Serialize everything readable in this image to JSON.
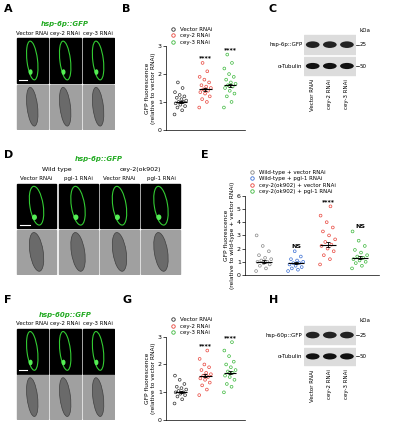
{
  "chart_data": [
    {
      "type": "strip",
      "panel": "B",
      "y_label": "GFP fluorescence\n(relative to vector RNAi)",
      "ylim": [
        0,
        3
      ],
      "yticks": [
        0,
        1,
        2,
        3
      ],
      "legend": "upper left",
      "tick_labels": "y",
      "marker": "o",
      "series": [
        {
          "name": "Vector RNAi",
          "color": "#333333",
          "mean": 1.0,
          "sem": 0.03,
          "annotation": null,
          "values": [
            0.55,
            0.7,
            0.8,
            0.85,
            0.9,
            0.95,
            1.0,
            1.0,
            1.05,
            1.1,
            1.15,
            1.2,
            1.25,
            1.35,
            1.5,
            1.7
          ]
        },
        {
          "name": "cey-2 RNAi",
          "color": "#e8453c",
          "mean": 1.45,
          "sem": 0.04,
          "annotation": "****",
          "values": [
            0.8,
            1.0,
            1.1,
            1.2,
            1.3,
            1.35,
            1.4,
            1.45,
            1.5,
            1.55,
            1.6,
            1.7,
            1.8,
            1.9,
            2.1,
            2.4
          ]
        },
        {
          "name": "cey-3 RNAi",
          "color": "#3db83d",
          "mean": 1.6,
          "sem": 0.05,
          "annotation": "****",
          "values": [
            0.8,
            1.0,
            1.2,
            1.3,
            1.4,
            1.5,
            1.55,
            1.6,
            1.65,
            1.7,
            1.8,
            1.9,
            2.0,
            2.2,
            2.4,
            2.7
          ]
        }
      ]
    },
    {
      "type": "strip",
      "panel": "E",
      "y_label": "GFP fluorescence\n(relative to wild-type + vector RNAi)",
      "ylim": [
        0,
        6
      ],
      "yticks": [
        0,
        1,
        2,
        3,
        4,
        5,
        6
      ],
      "legend": "upper left",
      "tick_labels": "y",
      "marker": "o",
      "series": [
        {
          "name": "Wild-type + vector RNAi",
          "color": "#888888",
          "mean": 1.0,
          "sem": 0.1,
          "annotation": null,
          "values": [
            0.3,
            0.5,
            0.7,
            0.8,
            0.9,
            1.0,
            1.0,
            1.1,
            1.2,
            1.3,
            1.5,
            1.8,
            2.2,
            3.0
          ]
        },
        {
          "name": "Wild-type + pgl-1 RNAi",
          "color": "#3b6fd4",
          "mean": 0.9,
          "sem": 0.08,
          "annotation": "NS",
          "values": [
            0.3,
            0.4,
            0.5,
            0.6,
            0.7,
            0.8,
            0.9,
            0.9,
            1.0,
            1.1,
            1.2,
            1.4,
            1.8
          ]
        },
        {
          "name": "cey-2(ok902) + vector RNAi",
          "color": "#e8453c",
          "mean": 2.3,
          "sem": 0.2,
          "annotation": "****",
          "values": [
            0.8,
            1.2,
            1.5,
            1.8,
            2.0,
            2.2,
            2.3,
            2.5,
            2.7,
            3.0,
            3.3,
            3.6,
            4.0,
            4.5,
            5.2
          ]
        },
        {
          "name": "cey-2(ok902) + pgl-1 RNAi",
          "color": "#3db83d",
          "mean": 1.3,
          "sem": 0.12,
          "annotation": "NS",
          "values": [
            0.5,
            0.7,
            0.9,
            1.0,
            1.1,
            1.2,
            1.3,
            1.4,
            1.5,
            1.7,
            1.9,
            2.2,
            2.6,
            3.3
          ]
        }
      ]
    },
    {
      "type": "strip",
      "panel": "G",
      "y_label": "GFP fluorescence\n(relative to vector RNAi)",
      "ylim": [
        0,
        3
      ],
      "yticks": [
        0,
        1,
        2,
        3
      ],
      "legend": "upper left",
      "tick_labels": "y",
      "marker": "o",
      "series": [
        {
          "name": "Vector RNAi",
          "color": "#333333",
          "mean": 1.0,
          "sem": 0.03,
          "annotation": null,
          "values": [
            0.6,
            0.75,
            0.85,
            0.9,
            0.95,
            1.0,
            1.0,
            1.05,
            1.1,
            1.15,
            1.2,
            1.3,
            1.45,
            1.6
          ]
        },
        {
          "name": "cey-2 RNAi",
          "color": "#e8453c",
          "mean": 1.6,
          "sem": 0.04,
          "annotation": "****",
          "values": [
            0.9,
            1.1,
            1.25,
            1.35,
            1.45,
            1.5,
            1.55,
            1.6,
            1.65,
            1.7,
            1.8,
            1.9,
            2.0,
            2.2,
            2.5
          ]
        },
        {
          "name": "cey-3 RNAi",
          "color": "#3db83d",
          "mean": 1.7,
          "sem": 0.05,
          "annotation": "****",
          "values": [
            1.0,
            1.2,
            1.3,
            1.45,
            1.55,
            1.6,
            1.7,
            1.75,
            1.8,
            1.9,
            2.0,
            2.1,
            2.3,
            2.5,
            2.8
          ]
        }
      ]
    }
  ],
  "images": [
    {
      "panel": "A",
      "title": "hsp-6p::GFP",
      "groups": [
        {
          "label": null,
          "columns": [
            "Vector RNAi",
            "cey-2 RNAi",
            "cey-3 RNAi"
          ]
        }
      ]
    },
    {
      "panel": "D",
      "title": "hsp-6p::GFP",
      "groups": [
        {
          "label": "Wild type",
          "columns": [
            "Vector RNAi",
            "pgl-1 RNAi"
          ]
        },
        {
          "label": "cey-2(ok902)",
          "columns": [
            "Vector RNAi",
            "pgl-1 RNAi"
          ]
        }
      ]
    },
    {
      "panel": "F",
      "title": "hsp-60p::GFP",
      "groups": [
        {
          "label": null,
          "columns": [
            "Vector RNAi",
            "cey-2 RNAi",
            "cey-3 RNAi"
          ]
        }
      ]
    }
  ],
  "blots": [
    {
      "panel": "C",
      "band_label": "hsp-6p::GFP",
      "loading_label": "α-Tubulin",
      "unit": "kDa",
      "markers": [
        25,
        50
      ],
      "lanes": [
        "Vector RNAi",
        "cey-2 RNAi",
        "cey-3 RNAi"
      ]
    },
    {
      "panel": "H",
      "band_label": "hsp-60p::GFP",
      "loading_label": "α-Tubulin",
      "unit": "kDa",
      "markers": [
        25,
        50
      ],
      "lanes": [
        "Vector RNAi",
        "cey-2 RNAi",
        "cey-3 RNAi"
      ]
    }
  ]
}
